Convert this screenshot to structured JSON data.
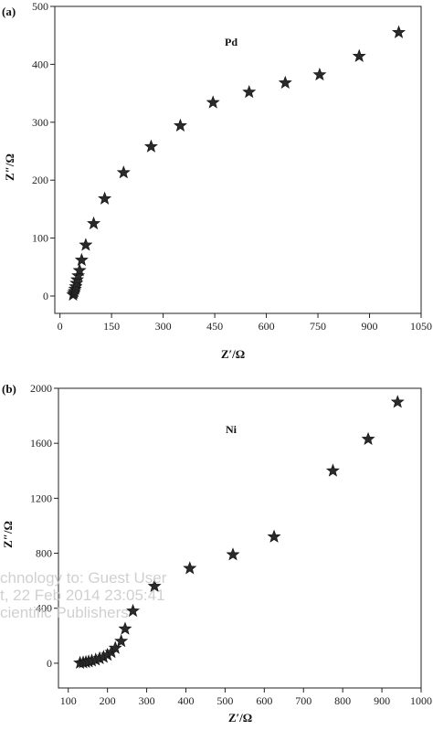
{
  "watermark": {
    "lines": [
      "chnology to: Guest User",
      "t, 22 Feb 2014 23:05:41",
      "cientific Publishers"
    ]
  },
  "chart_data": [
    {
      "type": "scatter",
      "panel_label": "(a)",
      "series_label": "Pd",
      "xlabel": "Z′/Ω",
      "ylabel": "Z″/Ω",
      "xlim": [
        -15,
        1050
      ],
      "ylim": [
        -30,
        500
      ],
      "xticks": [
        0,
        150,
        300,
        450,
        600,
        750,
        900,
        1050
      ],
      "yticks": [
        0,
        100,
        200,
        300,
        400,
        500
      ],
      "marker": "star",
      "series": [
        {
          "values": [
            [
              38,
              2
            ],
            [
              40,
              5
            ],
            [
              42,
              8
            ],
            [
              44,
              12
            ],
            [
              46,
              16
            ],
            [
              48,
              22
            ],
            [
              50,
              28
            ],
            [
              53,
              35
            ],
            [
              57,
              44
            ],
            [
              63,
              62
            ],
            [
              75,
              88
            ],
            [
              98,
              125
            ],
            [
              130,
              168
            ],
            [
              185,
              213
            ],
            [
              265,
              258
            ],
            [
              350,
              294
            ],
            [
              445,
              334
            ],
            [
              550,
              352
            ],
            [
              655,
              368
            ],
            [
              755,
              382
            ],
            [
              870,
              414
            ],
            [
              985,
              455
            ]
          ]
        }
      ]
    },
    {
      "type": "scatter",
      "panel_label": "(b)",
      "series_label": "Ni",
      "xlabel": "Z′/Ω",
      "ylabel": "Z″/Ω",
      "xlim": [
        75,
        1000
      ],
      "ylim": [
        -180,
        2000
      ],
      "xticks": [
        100,
        200,
        300,
        400,
        500,
        600,
        700,
        800,
        900,
        1000
      ],
      "yticks": [
        0,
        400,
        800,
        1200,
        1600,
        2000
      ],
      "marker": "star",
      "series": [
        {
          "values": [
            [
              130,
              2
            ],
            [
              138,
              5
            ],
            [
              145,
              8
            ],
            [
              152,
              12
            ],
            [
              160,
              18
            ],
            [
              170,
              25
            ],
            [
              180,
              35
            ],
            [
              190,
              45
            ],
            [
              200,
              60
            ],
            [
              210,
              80
            ],
            [
              220,
              110
            ],
            [
              235,
              160
            ],
            [
              245,
              250
            ],
            [
              265,
              380
            ],
            [
              320,
              560
            ],
            [
              410,
              690
            ],
            [
              520,
              790
            ],
            [
              625,
              920
            ],
            [
              775,
              1400
            ],
            [
              865,
              1630
            ],
            [
              940,
              1900
            ]
          ]
        }
      ]
    }
  ]
}
